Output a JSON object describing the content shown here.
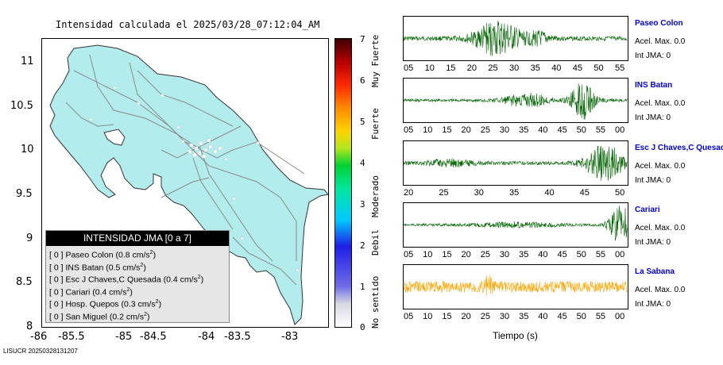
{
  "title": "Intensidad calculada el 2025/03/28_07:12:04_AM",
  "map": {
    "y_ticks": [
      "11",
      "10.5",
      "10",
      "9.5",
      "9",
      "8.5",
      "8"
    ],
    "x_ticks": [
      "-86",
      "-85.5",
      "-85",
      "-84.5",
      "-84",
      "-83.5",
      "-83"
    ],
    "land_color": "#b3ecec"
  },
  "legend": {
    "title": "INTENSIDAD JMA [0 a 7]",
    "items": [
      {
        "value": "[ 0 ]",
        "name": "Paseo Colon",
        "accel": "(0.8 cm/s",
        "sup": "2",
        "close": ")"
      },
      {
        "value": "[ 0 ]",
        "name": "INS Batan",
        "accel": "(0.5 cm/s",
        "sup": "2",
        "close": ")"
      },
      {
        "value": "[ 0 ]",
        "name": "Esc J Chaves,C Quesada",
        "accel": "(0.4 cm/s",
        "sup": "2",
        "close": ")"
      },
      {
        "value": "[ 0 ]",
        "name": "Cariari",
        "accel": "(0.4 cm/s",
        "sup": "2",
        "close": ")"
      },
      {
        "value": "[ 0 ]",
        "name": "Hosp. Quepos",
        "accel": "(0.3 cm/s",
        "sup": "2",
        "close": ")"
      },
      {
        "value": "[ 0 ]",
        "name": "San Miguel",
        "accel": "(0.2 cm/s",
        "sup": "2",
        "close": ")"
      }
    ]
  },
  "colorbar": {
    "ticks": [
      "7",
      "6",
      "5",
      "4",
      "3",
      "2",
      "1",
      "0"
    ],
    "labels": [
      "Muy Fuerte",
      "Fuerte",
      "Moderado",
      "Debil",
      "No sentido"
    ]
  },
  "traces": [
    {
      "name": "Paseo Colon",
      "accel_label": "Acel. Max. 0.0",
      "int_label": "Int JMA: 0",
      "color": "#006400",
      "ticks": [
        "05",
        "10",
        "15",
        "20",
        "25",
        "30",
        "35",
        "40",
        "45",
        "50",
        "55"
      ],
      "activity": "middle"
    },
    {
      "name": "INS Batan",
      "accel_label": "Acel. Max. 0.0",
      "int_label": "Int JMA: 0",
      "color": "#006400",
      "ticks": [
        "05",
        "10",
        "15",
        "20",
        "25",
        "30",
        "35",
        "40",
        "45",
        "50",
        "55",
        "00"
      ],
      "activity": "late-middle"
    },
    {
      "name": "Esc J Chaves,C Quesada",
      "accel_label": "Acel. Max. 0.0",
      "int_label": "Int JMA: 0",
      "color": "#006400",
      "ticks": [
        "20",
        "25",
        "30",
        "35",
        "40",
        "45",
        "50"
      ],
      "activity": "end"
    },
    {
      "name": "Cariari",
      "accel_label": "Acel. Max. 0.0",
      "int_label": "Int JMA: 0",
      "color": "#006400",
      "ticks": [
        "05",
        "10",
        "15",
        "20",
        "25",
        "30",
        "35",
        "40",
        "45",
        "50",
        "55",
        "00"
      ],
      "activity": "very-end"
    },
    {
      "name": "La Sabana",
      "accel_label": "Acel. Max. 0.0",
      "int_label": "Int JMA: 0",
      "color": "#ffa500",
      "ticks": [
        "05",
        "10",
        "15",
        "20",
        "25",
        "30",
        "35",
        "40",
        "45",
        "50",
        "55",
        "00"
      ],
      "activity": "noise"
    }
  ],
  "time_axis_label": "Tiempo (s)",
  "footer": "LISUCR 20250328131207"
}
